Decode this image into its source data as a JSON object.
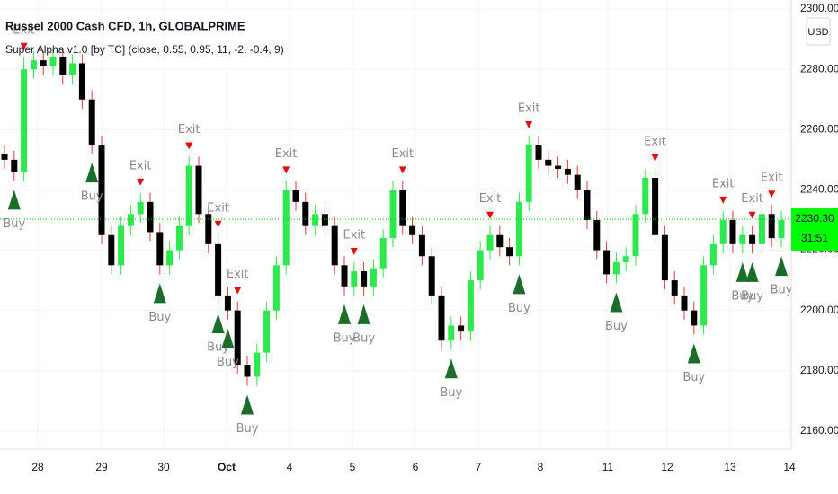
{
  "chart_data": {
    "type": "candlestick",
    "title": "Russel 2000 Cash CFD, 1h, GLOBALPRIME",
    "indicator": "Super Alpha v1.0 [by TC] (close, 0.55, 0.95, 11, -2, -0.4, 9)",
    "currency": "USD",
    "up_color": "#2ee84f",
    "down_color": "#000000",
    "grid": true,
    "ylim": [
      2155.5,
      2303
    ],
    "yticks": [
      {
        "value": 2160,
        "label": "2160.00"
      },
      {
        "value": 2180,
        "label": "2180.00"
      },
      {
        "value": 2200,
        "label": "2200.00"
      },
      {
        "value": 2220,
        "label": "2220.00"
      },
      {
        "value": 2240,
        "label": "2240.00"
      },
      {
        "value": 2260,
        "label": "2260.00"
      },
      {
        "value": 2280,
        "label": "2280.00"
      },
      {
        "value": 2300,
        "label": "2300.00"
      }
    ],
    "date_labels": [
      "28",
      "29",
      "30",
      "Oct",
      "4",
      "5",
      "6",
      "7",
      "8",
      "11",
      "12",
      "13",
      "14"
    ],
    "candles": [
      [
        2252,
        2255,
        2247,
        2250
      ],
      [
        2250,
        2253,
        2243,
        2246
      ],
      [
        2246,
        2284,
        2243,
        2280
      ],
      [
        2280,
        2286,
        2277,
        2283
      ],
      [
        2283,
        2286,
        2278,
        2281
      ],
      [
        2281,
        2287,
        2278,
        2284
      ],
      [
        2284,
        2287,
        2275,
        2278
      ],
      [
        2278,
        2285,
        2275,
        2282
      ],
      [
        2282,
        2285,
        2267,
        2270
      ],
      [
        2270,
        2273,
        2252,
        2255
      ],
      [
        2255,
        2258,
        2222,
        2225
      ],
      [
        2225,
        2228,
        2212,
        2215
      ],
      [
        2215,
        2231,
        2212,
        2228
      ],
      [
        2228,
        2235,
        2225,
        2232
      ],
      [
        2232,
        2239,
        2229,
        2236
      ],
      [
        2236,
        2239,
        2223,
        2226
      ],
      [
        2226,
        2229,
        2212,
        2215
      ],
      [
        2215,
        2223,
        2212,
        2220
      ],
      [
        2220,
        2231,
        2217,
        2228
      ],
      [
        2228,
        2251,
        2225,
        2248
      ],
      [
        2248,
        2251,
        2229,
        2232
      ],
      [
        2232,
        2235,
        2219,
        2222
      ],
      [
        2222,
        2225,
        2202,
        2205
      ],
      [
        2205,
        2208,
        2197,
        2200
      ],
      [
        2200,
        2203,
        2179,
        2182
      ],
      [
        2182,
        2185,
        2175,
        2178
      ],
      [
        2178,
        2189,
        2175,
        2186
      ],
      [
        2186,
        2203,
        2183,
        2200
      ],
      [
        2200,
        2218,
        2197,
        2215
      ],
      [
        2215,
        2243,
        2212,
        2240
      ],
      [
        2240,
        2243,
        2233,
        2236
      ],
      [
        2236,
        2239,
        2225,
        2228
      ],
      [
        2228,
        2235,
        2225,
        2232
      ],
      [
        2232,
        2235,
        2225,
        2228
      ],
      [
        2228,
        2231,
        2212,
        2215
      ],
      [
        2215,
        2218,
        2205,
        2208
      ],
      [
        2208,
        2216,
        2205,
        2213
      ],
      [
        2213,
        2216,
        2205,
        2208
      ],
      [
        2208,
        2217,
        2205,
        2214
      ],
      [
        2214,
        2227,
        2211,
        2224
      ],
      [
        2224,
        2243,
        2221,
        2240
      ],
      [
        2240,
        2243,
        2225,
        2228
      ],
      [
        2228,
        2231,
        2222,
        2225
      ],
      [
        2225,
        2228,
        2215,
        2218
      ],
      [
        2218,
        2221,
        2202,
        2205
      ],
      [
        2205,
        2208,
        2187,
        2190
      ],
      [
        2190,
        2198,
        2187,
        2195
      ],
      [
        2195,
        2198,
        2190,
        2193
      ],
      [
        2193,
        2213,
        2190,
        2210
      ],
      [
        2210,
        2223,
        2207,
        2220
      ],
      [
        2220,
        2228,
        2217,
        2225
      ],
      [
        2225,
        2228,
        2218,
        2221
      ],
      [
        2221,
        2224,
        2215,
        2218
      ],
      [
        2218,
        2239,
        2215,
        2236
      ],
      [
        2236,
        2258,
        2233,
        2255
      ],
      [
        2255,
        2258,
        2247,
        2250
      ],
      [
        2250,
        2253,
        2245,
        2248
      ],
      [
        2248,
        2251,
        2244,
        2247
      ],
      [
        2247,
        2250,
        2242,
        2245
      ],
      [
        2245,
        2248,
        2237,
        2240
      ],
      [
        2240,
        2243,
        2227,
        2230
      ],
      [
        2230,
        2233,
        2217,
        2220
      ],
      [
        2220,
        2223,
        2209,
        2212
      ],
      [
        2212,
        2219,
        2209,
        2216
      ],
      [
        2216,
        2221,
        2213,
        2218
      ],
      [
        2218,
        2235,
        2215,
        2232
      ],
      [
        2232,
        2247,
        2229,
        2244
      ],
      [
        2244,
        2247,
        2222,
        2225
      ],
      [
        2225,
        2228,
        2207,
        2210
      ],
      [
        2210,
        2213,
        2202,
        2205
      ],
      [
        2205,
        2208,
        2197,
        2200
      ],
      [
        2200,
        2203,
        2192,
        2195
      ],
      [
        2195,
        2218,
        2192,
        2215
      ],
      [
        2215,
        2225,
        2212,
        2222
      ],
      [
        2222,
        2233,
        2219,
        2230
      ],
      [
        2230,
        2233,
        2219,
        2222
      ],
      [
        2222,
        2228,
        2219,
        2225
      ],
      [
        2225,
        2228,
        2219,
        2222
      ],
      [
        2222,
        2235,
        2219,
        2232
      ],
      [
        2232,
        2235,
        2221,
        2224
      ],
      [
        2224,
        2233,
        2221,
        2230
      ]
    ],
    "buy_label": "Buy",
    "exit_label": "Exit",
    "buy_at": [
      1,
      9,
      16,
      22,
      23,
      25,
      35,
      37,
      46,
      53,
      63,
      71,
      76,
      77,
      80
    ],
    "exit_at": [
      2,
      14,
      19,
      22,
      24,
      29,
      36,
      41,
      50,
      54,
      67,
      74,
      77,
      79
    ],
    "last_price": {
      "value": 2230.3,
      "label": "2230.30"
    },
    "countdown": "31:51"
  }
}
